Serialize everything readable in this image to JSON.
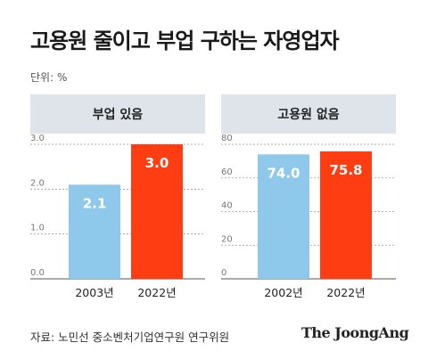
{
  "title": "고용원 줄이고 부업 구하는 자영업자",
  "unit_label": "단위: %",
  "source": "자료: 노민선 중소벤처기업연구원 연구위원",
  "logo": "The JoongAng",
  "colors": {
    "blue": "#8ec9ec",
    "red": "#ff3d12",
    "header_bg": "#dfe4ea",
    "grid": "#999999"
  },
  "chart_data": [
    {
      "type": "bar",
      "title": "부업 있음",
      "categories": [
        "2003년",
        "2022년"
      ],
      "values": [
        2.1,
        3.0
      ],
      "value_labels": [
        "2.1",
        "3.0"
      ],
      "bar_colors": [
        "#8ec9ec",
        "#ff3d12"
      ],
      "yticks": [
        "0.0",
        "1.0",
        "2.0",
        "3.0"
      ],
      "ylim": [
        0,
        3.0
      ],
      "grid": true
    },
    {
      "type": "bar",
      "title": "고용원 없음",
      "categories": [
        "2002년",
        "2022년"
      ],
      "values": [
        74.0,
        75.8
      ],
      "value_labels": [
        "74.0",
        "75.8"
      ],
      "bar_colors": [
        "#8ec9ec",
        "#ff3d12"
      ],
      "yticks": [
        "0",
        "20",
        "40",
        "60",
        "80"
      ],
      "ylim": [
        0,
        80
      ],
      "grid": true
    }
  ]
}
